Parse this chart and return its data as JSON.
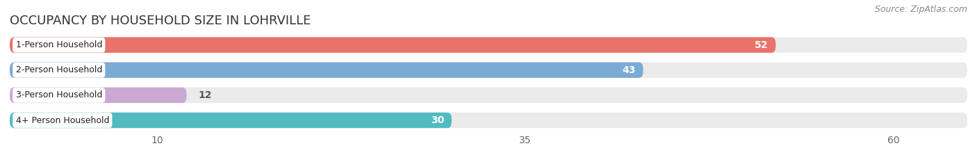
{
  "title": "OCCUPANCY BY HOUSEHOLD SIZE IN LOHRVILLE",
  "source": "Source: ZipAtlas.com",
  "categories": [
    "1-Person Household",
    "2-Person Household",
    "3-Person Household",
    "4+ Person Household"
  ],
  "values": [
    52,
    43,
    12,
    30
  ],
  "bar_colors": [
    "#E8736A",
    "#7BAAD4",
    "#C9A8D4",
    "#52BBC0"
  ],
  "background_color": "#FFFFFF",
  "bar_bg_color": "#EBEBEB",
  "label_bg_color": "#FFFFFF",
  "xlim_max": 65,
  "xticks": [
    10,
    35,
    60
  ],
  "bar_height": 0.62,
  "value_label_color_inside": "#FFFFFF",
  "value_label_color_outside": "#555555",
  "title_fontsize": 13,
  "source_fontsize": 9,
  "tick_fontsize": 10,
  "cat_fontsize": 9,
  "inside_threshold": 20
}
